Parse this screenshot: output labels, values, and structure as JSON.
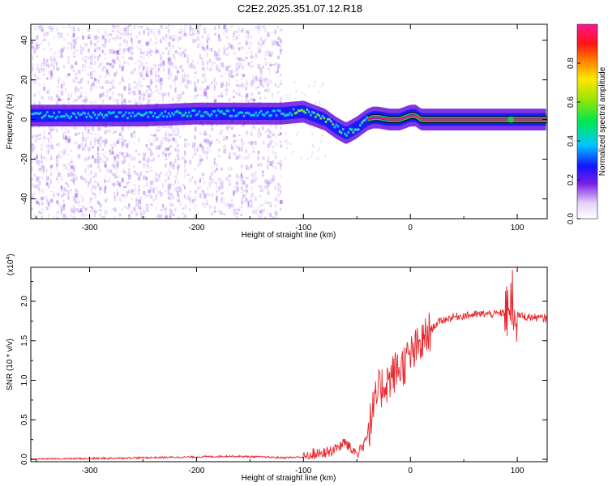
{
  "title": "C2E2.2025.351.07.12.R18",
  "chart_data": [
    {
      "type": "heatmap",
      "title": "C2E2.2025.351.07.12.R18",
      "xlabel": "Height of straight line (km)",
      "ylabel": "Frequency (Hz)",
      "xlim": [
        -355,
        128
      ],
      "ylim": [
        -50,
        48
      ],
      "x_ticks": [
        -300,
        -200,
        -100,
        0,
        100
      ],
      "x_tick_labels": [
        "-300",
        "-200",
        "-100",
        "0",
        "100"
      ],
      "y_ticks": [
        -40,
        -20,
        0,
        20,
        40
      ],
      "y_tick_labels": [
        "-40",
        "-20",
        "0",
        "20",
        "40"
      ],
      "colorbar": {
        "label": "Normalized spectral amplitude",
        "range": [
          0.0,
          1.0
        ],
        "ticks": [
          0.0,
          0.2,
          0.4,
          0.6,
          0.8
        ],
        "tick_labels": [
          "0.0",
          "0.2",
          "0.4",
          "0.6",
          "0.8"
        ]
      },
      "ridge": {
        "x": [
          -355,
          -300,
          -250,
          -200,
          -150,
          -120,
          -100,
          -90,
          -80,
          -75,
          -70,
          -60,
          -50,
          -45,
          -40,
          -35,
          -30,
          -20,
          -10,
          -5,
          0,
          5,
          10,
          50,
          90,
          94,
          100,
          128
        ],
        "y": [
          2,
          2,
          2,
          3,
          3,
          3,
          4,
          2,
          0,
          -2,
          -4,
          -7,
          -4,
          -2,
          0,
          1,
          1,
          0,
          0,
          1,
          2,
          2,
          0,
          0,
          0,
          0,
          0,
          0
        ]
      },
      "background_noise_extent_km": [
        -355,
        -120
      ]
    },
    {
      "type": "line",
      "title": "",
      "xlabel": "Height of straight line (km)",
      "ylabel": "SNR (10 * v/v)",
      "multiplier_label": "(x10",
      "multiplier_exponent": "4",
      "xlim": [
        -355,
        128
      ],
      "ylim": [
        -0.03,
        2.43
      ],
      "x_ticks": [
        -300,
        -200,
        -100,
        0,
        100
      ],
      "x_tick_labels": [
        "-300",
        "-200",
        "-100",
        "0",
        "100"
      ],
      "y_ticks": [
        0.0,
        0.5,
        1.0,
        1.5,
        2.0
      ],
      "y_tick_labels": [
        "0.0",
        "0.5",
        "1.0",
        "1.5",
        "2.0"
      ],
      "series": [
        {
          "name": "SNR",
          "color": "#e8262b",
          "x": [
            -355,
            -300,
            -250,
            -200,
            -170,
            -140,
            -120,
            -100,
            -90,
            -80,
            -70,
            -60,
            -55,
            -50,
            -45,
            -40,
            -35,
            -30,
            -25,
            -20,
            -15,
            -10,
            -5,
            0,
            5,
            10,
            15,
            20,
            25,
            30,
            40,
            50,
            60,
            70,
            80,
            90,
            95,
            100,
            110,
            120,
            128
          ],
          "y": [
            0.0,
            0.01,
            0.02,
            0.03,
            0.04,
            0.03,
            0.02,
            0.03,
            0.06,
            0.08,
            0.13,
            0.22,
            0.12,
            0.08,
            0.15,
            0.32,
            0.6,
            0.85,
            0.95,
            1.0,
            1.1,
            1.15,
            1.22,
            1.3,
            1.38,
            1.45,
            1.55,
            1.65,
            1.72,
            1.76,
            1.8,
            1.82,
            1.83,
            1.84,
            1.84,
            1.86,
            1.9,
            1.82,
            1.8,
            1.79,
            1.78
          ]
        }
      ]
    }
  ]
}
